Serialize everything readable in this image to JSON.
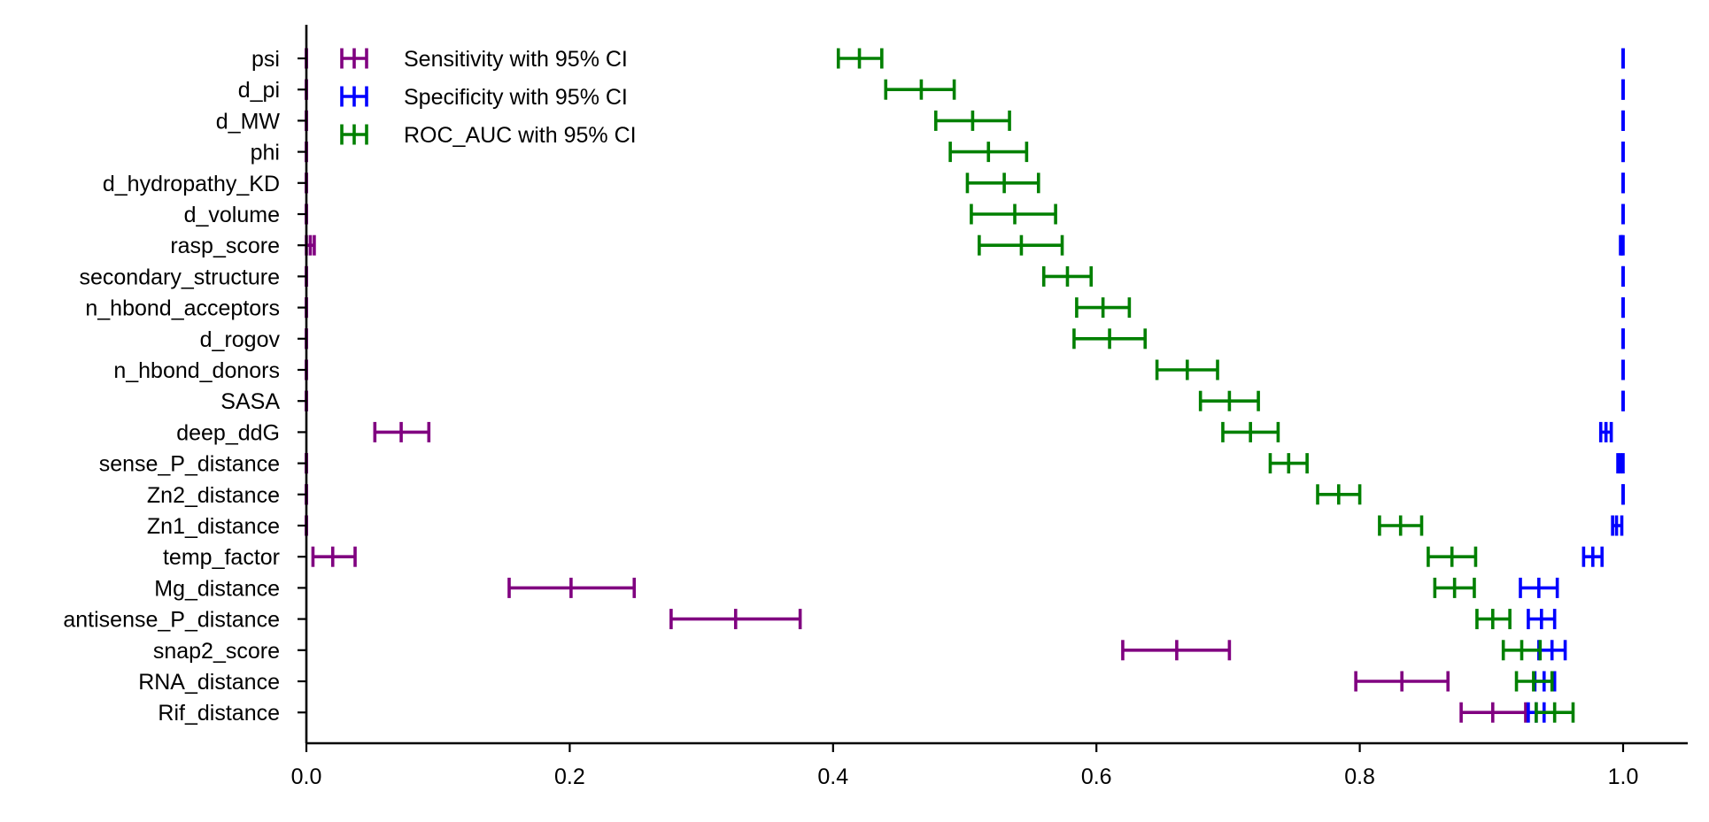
{
  "chart_data": {
    "type": "errorbar",
    "title": "",
    "xlabel": "",
    "ylabel": "",
    "xlim": [
      0.0,
      1.05
    ],
    "x_ticks": [
      "0.0",
      "0.2",
      "0.4",
      "0.6",
      "0.8",
      "1.0"
    ],
    "grid": false,
    "legend_position": "top-left",
    "categories": [
      "psi",
      "d_pi",
      "d_MW",
      "phi",
      "d_hydropathy_KD",
      "d_volume",
      "rasp_score",
      "secondary_structure",
      "n_hbond_acceptors",
      "d_rogov",
      "n_hbond_donors",
      "SASA",
      "deep_ddG",
      "sense_P_distance",
      "Zn2_distance",
      "Zn1_distance",
      "temp_factor",
      "Mg_distance",
      "antisense_P_distance",
      "snap2_score",
      "RNA_distance",
      "Rif_distance"
    ],
    "series": [
      {
        "name": "Sensitivity with 95% CI",
        "color": "#800080",
        "values": [
          {
            "mean": 0.0,
            "low": 0.0,
            "high": 0.0
          },
          {
            "mean": 0.0,
            "low": 0.0,
            "high": 0.0
          },
          {
            "mean": 0.0,
            "low": 0.0,
            "high": 0.0
          },
          {
            "mean": 0.0,
            "low": 0.0,
            "high": 0.0
          },
          {
            "mean": 0.0,
            "low": 0.0,
            "high": 0.0
          },
          {
            "mean": 0.0,
            "low": 0.0,
            "high": 0.0
          },
          {
            "mean": 0.003,
            "low": 0.0,
            "high": 0.006
          },
          {
            "mean": 0.0,
            "low": 0.0,
            "high": 0.0
          },
          {
            "mean": 0.0,
            "low": 0.0,
            "high": 0.0
          },
          {
            "mean": 0.0,
            "low": 0.0,
            "high": 0.0
          },
          {
            "mean": 0.0,
            "low": 0.0,
            "high": 0.0
          },
          {
            "mean": 0.0,
            "low": 0.0,
            "high": 0.0
          },
          {
            "mean": 0.072,
            "low": 0.052,
            "high": 0.093
          },
          {
            "mean": 0.0,
            "low": 0.0,
            "high": 0.0
          },
          {
            "mean": 0.0,
            "low": 0.0,
            "high": 0.0
          },
          {
            "mean": 0.0,
            "low": 0.0,
            "high": 0.0
          },
          {
            "mean": 0.02,
            "low": 0.005,
            "high": 0.037
          },
          {
            "mean": 0.201,
            "low": 0.154,
            "high": 0.249
          },
          {
            "mean": 0.326,
            "low": 0.277,
            "high": 0.375
          },
          {
            "mean": 0.661,
            "low": 0.62,
            "high": 0.701
          },
          {
            "mean": 0.832,
            "low": 0.797,
            "high": 0.867
          },
          {
            "mean": 0.901,
            "low": 0.877,
            "high": 0.926
          }
        ]
      },
      {
        "name": "Specificity with 95% CI",
        "color": "#0000ff",
        "values": [
          {
            "mean": 1.0,
            "low": 1.0,
            "high": 1.0
          },
          {
            "mean": 1.0,
            "low": 1.0,
            "high": 1.0
          },
          {
            "mean": 1.0,
            "low": 1.0,
            "high": 1.0
          },
          {
            "mean": 1.0,
            "low": 1.0,
            "high": 1.0
          },
          {
            "mean": 1.0,
            "low": 1.0,
            "high": 1.0
          },
          {
            "mean": 1.0,
            "low": 1.0,
            "high": 1.0
          },
          {
            "mean": 0.999,
            "low": 0.998,
            "high": 1.0
          },
          {
            "mean": 1.0,
            "low": 1.0,
            "high": 1.0
          },
          {
            "mean": 1.0,
            "low": 1.0,
            "high": 1.0
          },
          {
            "mean": 1.0,
            "low": 1.0,
            "high": 1.0
          },
          {
            "mean": 1.0,
            "low": 1.0,
            "high": 1.0
          },
          {
            "mean": 1.0,
            "low": 1.0,
            "high": 1.0
          },
          {
            "mean": 0.987,
            "low": 0.983,
            "high": 0.991
          },
          {
            "mean": 0.998,
            "low": 0.996,
            "high": 1.0
          },
          {
            "mean": 1.0,
            "low": 1.0,
            "high": 1.0
          },
          {
            "mean": 0.995,
            "low": 0.992,
            "high": 0.999
          },
          {
            "mean": 0.977,
            "low": 0.97,
            "high": 0.984
          },
          {
            "mean": 0.936,
            "low": 0.922,
            "high": 0.95
          },
          {
            "mean": 0.938,
            "low": 0.928,
            "high": 0.948
          },
          {
            "mean": 0.946,
            "low": 0.936,
            "high": 0.956
          },
          {
            "mean": 0.94,
            "low": 0.933,
            "high": 0.948
          },
          {
            "mean": 0.934,
            "low": 0.928,
            "high": 0.94
          }
        ]
      },
      {
        "name": "ROC_AUC with 95% CI",
        "color": "#008000",
        "values": [
          {
            "mean": 0.42,
            "low": 0.404,
            "high": 0.437
          },
          {
            "mean": 0.467,
            "low": 0.44,
            "high": 0.492
          },
          {
            "mean": 0.506,
            "low": 0.478,
            "high": 0.534
          },
          {
            "mean": 0.518,
            "low": 0.489,
            "high": 0.547
          },
          {
            "mean": 0.53,
            "low": 0.502,
            "high": 0.556
          },
          {
            "mean": 0.538,
            "low": 0.505,
            "high": 0.569
          },
          {
            "mean": 0.543,
            "low": 0.511,
            "high": 0.574
          },
          {
            "mean": 0.578,
            "low": 0.56,
            "high": 0.596
          },
          {
            "mean": 0.605,
            "low": 0.585,
            "high": 0.625
          },
          {
            "mean": 0.61,
            "low": 0.583,
            "high": 0.637
          },
          {
            "mean": 0.669,
            "low": 0.646,
            "high": 0.692
          },
          {
            "mean": 0.701,
            "low": 0.679,
            "high": 0.723
          },
          {
            "mean": 0.717,
            "low": 0.696,
            "high": 0.738
          },
          {
            "mean": 0.746,
            "low": 0.732,
            "high": 0.76
          },
          {
            "mean": 0.784,
            "low": 0.768,
            "high": 0.8
          },
          {
            "mean": 0.831,
            "low": 0.815,
            "high": 0.847
          },
          {
            "mean": 0.87,
            "low": 0.852,
            "high": 0.888
          },
          {
            "mean": 0.872,
            "low": 0.857,
            "high": 0.887
          },
          {
            "mean": 0.901,
            "low": 0.889,
            "high": 0.914
          },
          {
            "mean": 0.923,
            "low": 0.909,
            "high": 0.937
          },
          {
            "mean": 0.932,
            "low": 0.919,
            "high": 0.946
          },
          {
            "mean": 0.948,
            "low": 0.934,
            "high": 0.962
          }
        ]
      }
    ]
  }
}
